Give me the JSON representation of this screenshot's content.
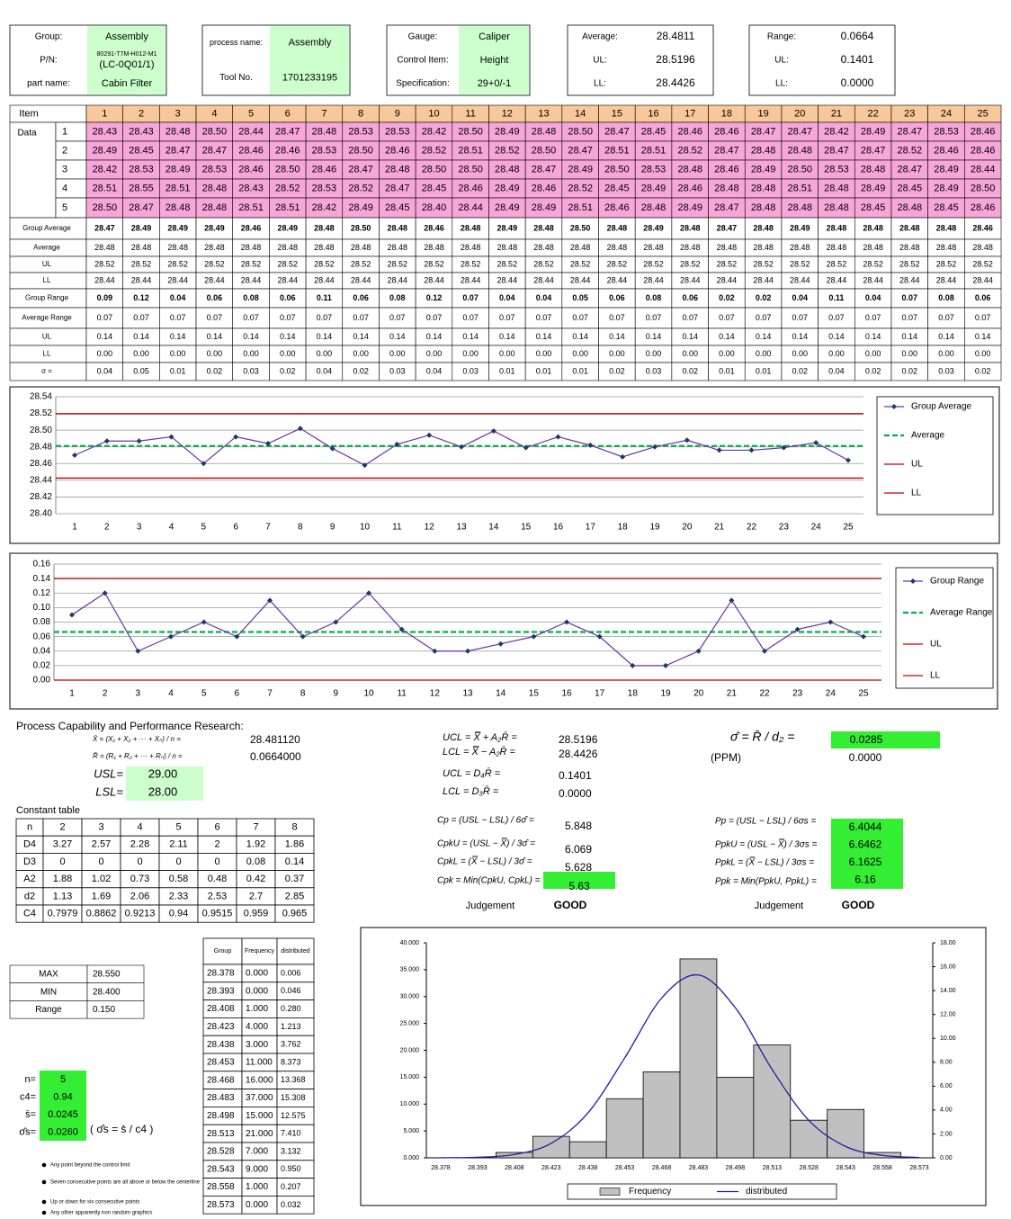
{
  "header": [
    {
      "fields": [
        {
          "label": "Group:",
          "value": "Assembly"
        },
        {
          "label": "P/N:",
          "value": "80291-T7M-H012-M1",
          "value2": "(LC-0Q01/1)"
        },
        {
          "label": "part name:",
          "value": "Cabin Filter"
        }
      ]
    },
    {
      "fields": [
        {
          "label": "process name:",
          "value": "Assembly"
        },
        {
          "label": "Tool No.",
          "value": "1701233195"
        }
      ]
    },
    {
      "fields": [
        {
          "label": "Gauge:",
          "value": "Caliper"
        },
        {
          "label": "Control Item:",
          "value": "Height"
        },
        {
          "label": "Specification:",
          "value": "29+0/-1"
        }
      ]
    },
    {
      "fields": [
        {
          "label": "Average:",
          "value": "28.4811"
        },
        {
          "label": "UL:",
          "value": "28.5196"
        },
        {
          "label": "LL:",
          "value": "28.4426"
        }
      ]
    },
    {
      "fields": [
        {
          "label": "Range:",
          "value": "0.0664"
        },
        {
          "label": "UL:",
          "value": "0.1401"
        },
        {
          "label": "LL:",
          "value": "0.0000"
        }
      ]
    }
  ],
  "table": {
    "item_label": "Item",
    "data_label": "Data",
    "items": [
      1,
      2,
      3,
      4,
      5,
      6,
      7,
      8,
      9,
      10,
      11,
      12,
      13,
      14,
      15,
      16,
      17,
      18,
      19,
      20,
      21,
      22,
      23,
      24,
      25
    ],
    "data_rows": [
      {
        "label": "1",
        "values": [
          "28.43",
          "28.43",
          "28.48",
          "28.50",
          "28.44",
          "28.47",
          "28.48",
          "28.53",
          "28.53",
          "28.42",
          "28.50",
          "28.49",
          "28.48",
          "28.50",
          "28.47",
          "28.45",
          "28.46",
          "28.46",
          "28.47",
          "28.47",
          "28.42",
          "28.49",
          "28.47",
          "28.53",
          "28.46"
        ]
      },
      {
        "label": "2",
        "values": [
          "28.49",
          "28.45",
          "28.47",
          "28.47",
          "28.46",
          "28.46",
          "28.53",
          "28.50",
          "28.46",
          "28.52",
          "28.51",
          "28.52",
          "28.50",
          "28.47",
          "28.51",
          "28.51",
          "28.52",
          "28.47",
          "28.48",
          "28.48",
          "28.47",
          "28.47",
          "28.52",
          "28.46",
          "28.46"
        ]
      },
      {
        "label": "3",
        "values": [
          "28.42",
          "28.53",
          "28.49",
          "28.53",
          "28.46",
          "28.50",
          "28.46",
          "28.47",
          "28.48",
          "28.50",
          "28.50",
          "28.48",
          "28.47",
          "28.49",
          "28.50",
          "28.53",
          "28.48",
          "28.46",
          "28.49",
          "28.50",
          "28.53",
          "28.48",
          "28.47",
          "28.49",
          "28.44"
        ]
      },
      {
        "label": "4",
        "values": [
          "28.51",
          "28.55",
          "28.51",
          "28.48",
          "28.43",
          "28.52",
          "28.53",
          "28.52",
          "28.47",
          "28.45",
          "28.46",
          "28.49",
          "28.46",
          "28.52",
          "28.45",
          "28.49",
          "28.46",
          "28.48",
          "28.48",
          "28.51",
          "28.48",
          "28.49",
          "28.45",
          "28.49",
          "28.50"
        ]
      },
      {
        "label": "5",
        "values": [
          "28.50",
          "28.47",
          "28.48",
          "28.48",
          "28.51",
          "28.51",
          "28.42",
          "28.49",
          "28.45",
          "28.40",
          "28.44",
          "28.49",
          "28.49",
          "28.51",
          "28.46",
          "28.48",
          "28.49",
          "28.47",
          "28.48",
          "28.48",
          "28.48",
          "28.45",
          "28.48",
          "28.45",
          "28.46"
        ]
      }
    ],
    "stat_rows": [
      {
        "label": "Group Average",
        "values": [
          "28.47",
          "28.49",
          "28.49",
          "28.49",
          "28.46",
          "28.49",
          "28.48",
          "28.50",
          "28.48",
          "28.46",
          "28.48",
          "28.49",
          "28.48",
          "28.50",
          "28.48",
          "28.49",
          "28.48",
          "28.47",
          "28.48",
          "28.49",
          "28.48",
          "28.48",
          "28.48",
          "28.48",
          "28.46"
        ]
      },
      {
        "label": "Average",
        "values": [
          "28.48",
          "28.48",
          "28.48",
          "28.48",
          "28.48",
          "28.48",
          "28.48",
          "28.48",
          "28.48",
          "28.48",
          "28.48",
          "28.48",
          "28.48",
          "28.48",
          "28.48",
          "28.48",
          "28.48",
          "28.48",
          "28.48",
          "28.48",
          "28.48",
          "28.48",
          "28.48",
          "28.48",
          "28.48"
        ]
      },
      {
        "label": "UL",
        "values": [
          "28.52",
          "28.52",
          "28.52",
          "28.52",
          "28.52",
          "28.52",
          "28.52",
          "28.52",
          "28.52",
          "28.52",
          "28.52",
          "28.52",
          "28.52",
          "28.52",
          "28.52",
          "28.52",
          "28.52",
          "28.52",
          "28.52",
          "28.52",
          "28.52",
          "28.52",
          "28.52",
          "28.52",
          "28.52"
        ]
      },
      {
        "label": "LL",
        "values": [
          "28.44",
          "28.44",
          "28.44",
          "28.44",
          "28.44",
          "28.44",
          "28.44",
          "28.44",
          "28.44",
          "28.44",
          "28.44",
          "28.44",
          "28.44",
          "28.44",
          "28.44",
          "28.44",
          "28.44",
          "28.44",
          "28.44",
          "28.44",
          "28.44",
          "28.44",
          "28.44",
          "28.44",
          "28.44"
        ]
      },
      {
        "label": "Group Range",
        "values": [
          "0.09",
          "0.12",
          "0.04",
          "0.06",
          "0.08",
          "0.06",
          "0.11",
          "0.06",
          "0.08",
          "0.12",
          "0.07",
          "0.04",
          "0.04",
          "0.05",
          "0.06",
          "0.08",
          "0.06",
          "0.02",
          "0.02",
          "0.04",
          "0.11",
          "0.04",
          "0.07",
          "0.08",
          "0.06"
        ]
      },
      {
        "label": "Average Range",
        "values": [
          "0.07",
          "0.07",
          "0.07",
          "0.07",
          "0.07",
          "0.07",
          "0.07",
          "0.07",
          "0.07",
          "0.07",
          "0.07",
          "0.07",
          "0.07",
          "0.07",
          "0.07",
          "0.07",
          "0.07",
          "0.07",
          "0.07",
          "0.07",
          "0.07",
          "0.07",
          "0.07",
          "0.07",
          "0.07"
        ]
      },
      {
        "label": "UL",
        "values": [
          "0.14",
          "0.14",
          "0.14",
          "0.14",
          "0.14",
          "0.14",
          "0.14",
          "0.14",
          "0.14",
          "0.14",
          "0.14",
          "0.14",
          "0.14",
          "0.14",
          "0.14",
          "0.14",
          "0.14",
          "0.14",
          "0.14",
          "0.14",
          "0.14",
          "0.14",
          "0.14",
          "0.14",
          "0.14"
        ]
      },
      {
        "label": "LL",
        "values": [
          "0.00",
          "0.00",
          "0.00",
          "0.00",
          "0.00",
          "0.00",
          "0.00",
          "0.00",
          "0.00",
          "0.00",
          "0.00",
          "0.00",
          "0.00",
          "0.00",
          "0.00",
          "0.00",
          "0.00",
          "0.00",
          "0.00",
          "0.00",
          "0.00",
          "0.00",
          "0.00",
          "0.00",
          "0.00"
        ]
      },
      {
        "label": "σ =",
        "values": [
          "0.04",
          "0.05",
          "0.01",
          "0.02",
          "0.03",
          "0.02",
          "0.04",
          "0.02",
          "0.03",
          "0.04",
          "0.03",
          "0.01",
          "0.01",
          "0.01",
          "0.02",
          "0.03",
          "0.02",
          "0.01",
          "0.01",
          "0.02",
          "0.04",
          "0.02",
          "0.02",
          "0.03",
          "0.02"
        ]
      }
    ]
  },
  "xbar_chart": {
    "type": "line",
    "categories": [
      1,
      2,
      3,
      4,
      5,
      6,
      7,
      8,
      9,
      10,
      11,
      12,
      13,
      14,
      15,
      16,
      17,
      18,
      19,
      20,
      21,
      22,
      23,
      24,
      25
    ],
    "series": [
      {
        "name": "Group  Average",
        "color": "#7030a0",
        "values": [
          28.47,
          28.487,
          28.487,
          28.492,
          28.46,
          28.492,
          28.484,
          28.502,
          28.478,
          28.458,
          28.483,
          28.494,
          28.48,
          28.499,
          28.479,
          28.492,
          28.482,
          28.468,
          28.48,
          28.488,
          28.476,
          28.476,
          28.479,
          28.485,
          28.464
        ]
      }
    ],
    "lines": [
      {
        "name": "Average",
        "value": 28.4811,
        "color": "#00b050",
        "dashed": true
      },
      {
        "name": "UL",
        "value": 28.5196,
        "color": "#c00000"
      },
      {
        "name": "LL",
        "value": 28.4426,
        "color": "#c00000"
      }
    ],
    "ylim": [
      28.4,
      28.54
    ],
    "yticks": [
      {
        "value": 28.4,
        "label": "28.40"
      },
      28.42,
      28.44,
      28.46,
      28.48,
      {
        "value": 28.5,
        "label": "28.50"
      },
      28.52,
      28.54
    ],
    "grid": true
  },
  "range_chart": {
    "type": "line",
    "categories": [
      1,
      2,
      3,
      4,
      5,
      6,
      7,
      8,
      9,
      10,
      11,
      12,
      13,
      14,
      15,
      16,
      17,
      18,
      19,
      20,
      21,
      22,
      23,
      24,
      25
    ],
    "series": [
      {
        "name": "Group  Range",
        "color": "#7030a0",
        "values": [
          0.09,
          0.12,
          0.04,
          0.06,
          0.08,
          0.06,
          0.11,
          0.06,
          0.08,
          0.12,
          0.07,
          0.04,
          0.04,
          0.05,
          0.06,
          0.08,
          0.06,
          0.02,
          0.02,
          0.04,
          0.11,
          0.04,
          0.07,
          0.08,
          0.06
        ]
      }
    ],
    "lines": [
      {
        "name": "Average Range",
        "value": 0.0664,
        "color": "#00b050",
        "dashed": true
      },
      {
        "name": "UL",
        "value": 0.1401,
        "color": "#c00000"
      },
      {
        "name": "LL",
        "value": 0,
        "color": "#c00000"
      }
    ],
    "ylim": [
      0,
      0.16
    ],
    "yticks": [
      {
        "value": 0,
        "label": "0.00"
      },
      0.02,
      0.04,
      0.06,
      0.08,
      {
        "value": 0.1,
        "label": "0.10"
      },
      0.12,
      0.14,
      0.16
    ],
    "grid": true
  },
  "capability": {
    "title": "Process Capability and Performance Research:",
    "xbar_formula": "X̄ = (X₁ + X₂ + ··· + Xₙ) / n =",
    "xbar_value": "28.481120",
    "rbar_formula": "R̄ = (R₁ + R₂ + ··· + Rₙ) / n =",
    "rbar_value": "0.0664000",
    "usl_label": "USL=",
    "usl": "29.00",
    "lsl_label": "LSL=",
    "lsl": "28.00",
    "limits": [
      {
        "formula": "UCL = X̿ + A₂R̄ =",
        "value": "28.5196"
      },
      {
        "formula": "LCL = X̿ − A₂R̄ =",
        "value": "28.4426"
      },
      {
        "formula": "UCL = D₄R̄ =",
        "value": "0.1401"
      },
      {
        "formula": "LCL = D₃R̄ =",
        "value": "0.0000"
      }
    ],
    "cp": [
      {
        "formula": "Cp = (USL − LSL) / 6σ̂ =",
        "value": "5.848"
      },
      {
        "formula": "CpkU = (USL − X̿) / 3σ̂ =",
        "value": "6.069"
      },
      {
        "formula": "CpkL = (X̿ − LSL) / 3σ̂ =",
        "value": "5.628"
      },
      {
        "formula": "Cpk = Min(CpkU, CpkL) =",
        "value": "5.63"
      }
    ],
    "judgement_label": "Judgement",
    "judgement": "GOOD",
    "sigma_formula": "σ̂ = R̄ / d₂ =",
    "sigma": "0.0285",
    "ppm_label": "(PPM)",
    "ppm": "0.0000",
    "pp": [
      {
        "formula": "Pp = (USL − LSL) / 6σs =",
        "value": "6.4044"
      },
      {
        "formula": "PpkU = (USL − X̿) / 3σs =",
        "value": "6.6462"
      },
      {
        "formula": "PpkL = (X̿ − LSL) / 3σs =",
        "value": "6.1625"
      },
      {
        "formula": "Ppk = Min(PpkU, PpkL) =",
        "value": "6.16"
      }
    ],
    "judgement2_label": "Judgement",
    "judgement2": "GOOD"
  },
  "constant_table": {
    "title": "Constant table",
    "header": [
      "n",
      "2",
      "3",
      "4",
      "5",
      "6",
      "7",
      "8"
    ],
    "rows": [
      [
        "D4",
        "3.27",
        "2.57",
        "2.28",
        "2.11",
        "2",
        "1.92",
        "1.86"
      ],
      [
        "D3",
        "0",
        "0",
        "0",
        "0",
        "0",
        "0.08",
        "0.14"
      ],
      [
        "A2",
        "1.88",
        "1.02",
        "0.73",
        "0.58",
        "0.48",
        "0.42",
        "0.37"
      ],
      [
        "d2",
        "1.13",
        "1.69",
        "2.06",
        "2.33",
        "2.53",
        "2.7",
        "2.85"
      ],
      [
        "C4",
        "0.7979",
        "0.8862",
        "0.9213",
        "0.94",
        "0.9515",
        "0.959",
        "0.965"
      ]
    ]
  },
  "range_table": [
    [
      "MAX",
      "28.550"
    ],
    [
      "MIN",
      "28.400"
    ],
    [
      "Range",
      "0.150"
    ]
  ],
  "sample": [
    {
      "label": "n=",
      "value": "5"
    },
    {
      "label": "c4=",
      "value": "0.94"
    },
    {
      "label": "s̄=",
      "value": "0.0245"
    },
    {
      "label": "σ̂s=",
      "value": "0.0260"
    }
  ],
  "sigma_s_formula": "(  σ̂s = s̄ / c4  )",
  "rules": [
    "Any point beyond the control limit",
    "Seven consecutive points are all above or below the centerline",
    "Up or down for six consecutive points",
    "Any other apparently non random graphics"
  ],
  "freq_table": {
    "header": [
      "Group",
      "Frequency",
      "distributed"
    ],
    "rows": [
      [
        "28.378",
        "0.000",
        "0.006"
      ],
      [
        "28.393",
        "0.000",
        "0.046"
      ],
      [
        "28.408",
        "1.000",
        "0.280"
      ],
      [
        "28.423",
        "4.000",
        "1.213"
      ],
      [
        "28.438",
        "3.000",
        "3.762"
      ],
      [
        "28.453",
        "11.000",
        "8.373"
      ],
      [
        "28.468",
        "16.000",
        "13.368"
      ],
      [
        "28.483",
        "37.000",
        "15.308"
      ],
      [
        "28.498",
        "15.000",
        "12.575"
      ],
      [
        "28.513",
        "21.000",
        "7.410"
      ],
      [
        "28.528",
        "7.000",
        "3.132"
      ],
      [
        "28.543",
        "9.000",
        "0.950"
      ],
      [
        "28.558",
        "1.000",
        "0.207"
      ],
      [
        "28.573",
        "0.000",
        "0.032"
      ]
    ]
  },
  "histogram": {
    "type": "bar",
    "categories": [
      "28.378",
      "28.393",
      "28.408",
      "28.423",
      "28.438",
      "28.453",
      "28.468",
      "28.483",
      "28.498",
      "28.513",
      "28.528",
      "28.543",
      "28.558",
      "28.573"
    ],
    "series": [
      {
        "name": "Frequency",
        "color": "#c0c0c0",
        "values": [
          0,
          0,
          1,
          4,
          3,
          11,
          16,
          37,
          15,
          21,
          7,
          9,
          1,
          0
        ]
      },
      {
        "name": "distributed",
        "color": "#1f1f9f",
        "axis": "y2",
        "values": [
          0.006,
          0.046,
          0.28,
          1.213,
          3.762,
          8.373,
          13.368,
          15.308,
          12.575,
          7.41,
          3.132,
          0.95,
          0.207,
          0.032
        ]
      }
    ],
    "ylim": [
      0,
      40
    ],
    "yticks": [
      {
        "value": 0,
        "label": "0.000"
      },
      {
        "value": 5,
        "label": "5.000"
      },
      {
        "value": 10,
        "label": "10.000"
      },
      {
        "value": 15,
        "label": "15.000"
      },
      {
        "value": 20,
        "label": "20.000"
      },
      {
        "value": 25,
        "label": "25.000"
      },
      {
        "value": 30,
        "label": "30.000"
      },
      {
        "value": 35,
        "label": "35.000"
      },
      {
        "value": 40,
        "label": "40.000"
      }
    ],
    "y2lim": [
      0,
      18
    ],
    "y2ticks": [
      {
        "value": 0,
        "label": "0.00"
      },
      {
        "value": 2,
        "label": "2.00"
      },
      {
        "value": 4,
        "label": "4.00"
      },
      {
        "value": 6,
        "label": "6.00"
      },
      {
        "value": 8,
        "label": "8.00"
      },
      {
        "value": 10,
        "label": "10.00"
      },
      {
        "value": 12,
        "label": "12.00"
      },
      {
        "value": 14,
        "label": "14.00"
      },
      {
        "value": 16,
        "label": "16.00"
      },
      {
        "value": 18,
        "label": "18.00"
      }
    ]
  }
}
